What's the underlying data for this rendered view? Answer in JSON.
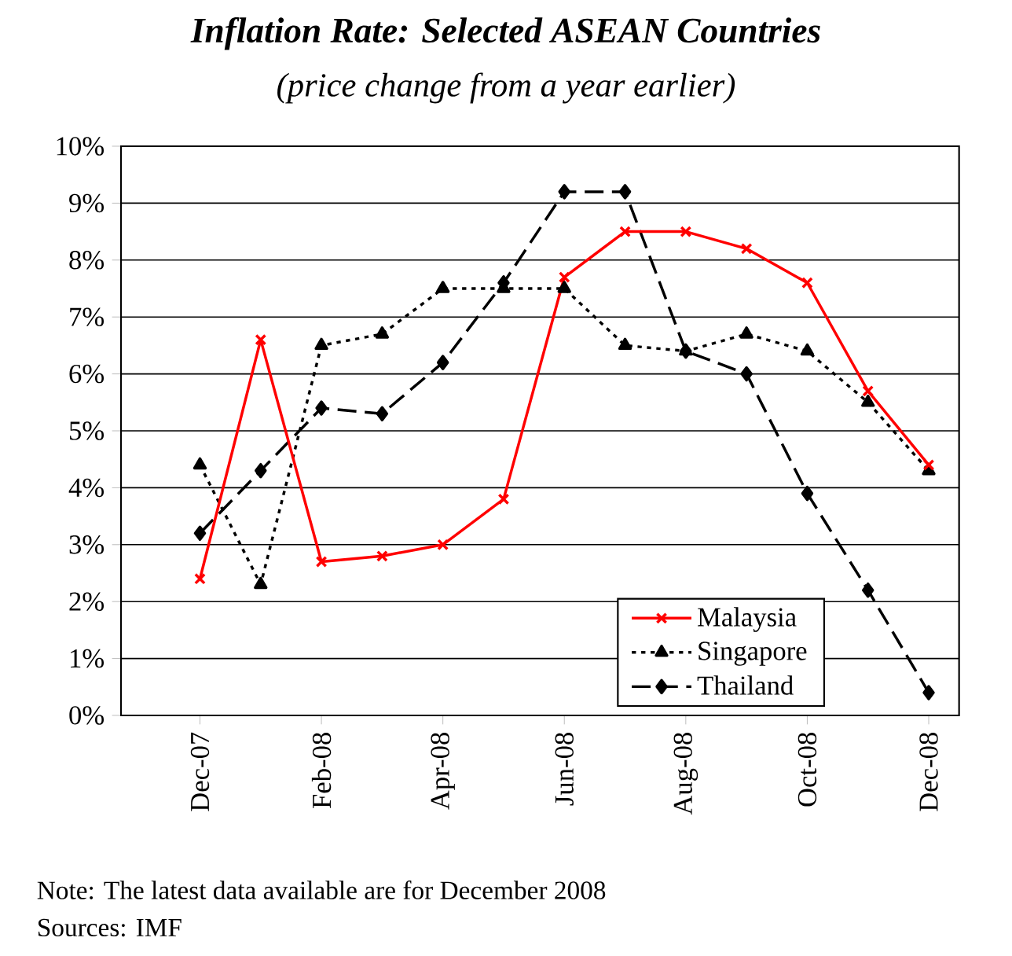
{
  "chart_data": {
    "type": "line",
    "title": "Inflation Rate: Selected ASEAN Countries",
    "subtitle": "(price change from a year earlier)",
    "categories": [
      "Dec-07",
      null,
      "Feb-08",
      null,
      "Apr-08",
      null,
      "Jun-08",
      null,
      "Aug-08",
      null,
      "Oct-08",
      null,
      "Dec-08"
    ],
    "series": [
      {
        "name": "Malaysia",
        "color": "#ff0000",
        "marker": "cross",
        "line_style": "solid",
        "values": [
          2.4,
          6.6,
          2.7,
          2.8,
          3.0,
          3.8,
          7.7,
          8.5,
          8.5,
          8.2,
          7.6,
          5.7,
          4.4
        ]
      },
      {
        "name": "Singapore",
        "color": "#000000",
        "marker": "triangle",
        "line_style": "dotted",
        "values": [
          4.4,
          2.3,
          6.5,
          6.7,
          7.5,
          7.5,
          7.5,
          6.5,
          6.4,
          6.7,
          6.4,
          5.5,
          4.3
        ]
      },
      {
        "name": "Thailand",
        "color": "#000000",
        "marker": "diamond",
        "line_style": "dashed",
        "values": [
          3.2,
          4.3,
          5.4,
          5.3,
          6.2,
          7.6,
          9.2,
          9.2,
          6.4,
          6.0,
          3.9,
          2.2,
          0.4
        ]
      }
    ],
    "ylim": [
      0,
      10
    ],
    "yticks": [
      {
        "value": 0,
        "label": "0%"
      },
      {
        "value": 1,
        "label": "1%"
      },
      {
        "value": 2,
        "label": "2%"
      },
      {
        "value": 3,
        "label": "3%"
      },
      {
        "value": 4,
        "label": "4%"
      },
      {
        "value": 5,
        "label": "5%"
      },
      {
        "value": 6,
        "label": "6%"
      },
      {
        "value": 7,
        "label": "7%"
      },
      {
        "value": 8,
        "label": "8%"
      },
      {
        "value": 9,
        "label": "9%"
      },
      {
        "value": 10,
        "label": "10%"
      }
    ],
    "grid": "y",
    "legend": "bottom right",
    "annotations": [
      "Note: The latest data available are for December 2008",
      "Sources: IMF"
    ]
  }
}
